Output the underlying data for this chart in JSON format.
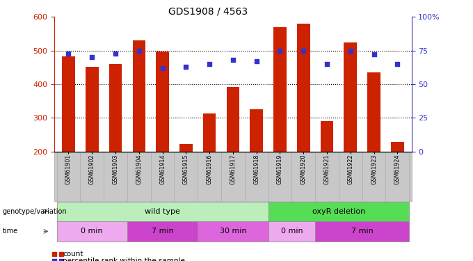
{
  "title": "GDS1908 / 4563",
  "samples": [
    "GSM61901",
    "GSM61902",
    "GSM61903",
    "GSM61904",
    "GSM61914",
    "GSM61915",
    "GSM61916",
    "GSM61917",
    "GSM61918",
    "GSM61919",
    "GSM61920",
    "GSM61921",
    "GSM61922",
    "GSM61923",
    "GSM61924"
  ],
  "counts": [
    483,
    452,
    460,
    530,
    498,
    222,
    312,
    392,
    325,
    570,
    580,
    290,
    525,
    435,
    228
  ],
  "percentiles": [
    73,
    70,
    73,
    75,
    62,
    63,
    65,
    68,
    67,
    75,
    75,
    65,
    75,
    72,
    65
  ],
  "ylim_left": [
    200,
    600
  ],
  "ylim_right": [
    0,
    100
  ],
  "yticks_left": [
    200,
    300,
    400,
    500,
    600
  ],
  "yticks_right": [
    0,
    25,
    50,
    75,
    100
  ],
  "bar_color": "#cc2200",
  "dot_color": "#3333cc",
  "genotype_groups": [
    {
      "label": "wild type",
      "start": 0,
      "end": 9,
      "color": "#bbeebb"
    },
    {
      "label": "oxyR deletion",
      "start": 9,
      "end": 15,
      "color": "#55dd55"
    }
  ],
  "time_groups": [
    {
      "label": "0 min",
      "start": 0,
      "end": 3,
      "color": "#eeaaee"
    },
    {
      "label": "7 min",
      "start": 3,
      "end": 6,
      "color": "#cc44cc"
    },
    {
      "label": "30 min",
      "start": 6,
      "end": 9,
      "color": "#dd66dd"
    },
    {
      "label": "0 min",
      "start": 9,
      "end": 11,
      "color": "#eeaaee"
    },
    {
      "label": "7 min",
      "start": 11,
      "end": 15,
      "color": "#cc44cc"
    }
  ],
  "legend_count_label": "count",
  "legend_pct_label": "percentile rank within the sample",
  "genotype_row_label": "genotype/variation",
  "time_row_label": "time",
  "left_axis_color": "#cc2200",
  "right_axis_color": "#3333cc",
  "tick_bg_color": "#c8c8c8",
  "grid_yticks": [
    300,
    400,
    500
  ]
}
